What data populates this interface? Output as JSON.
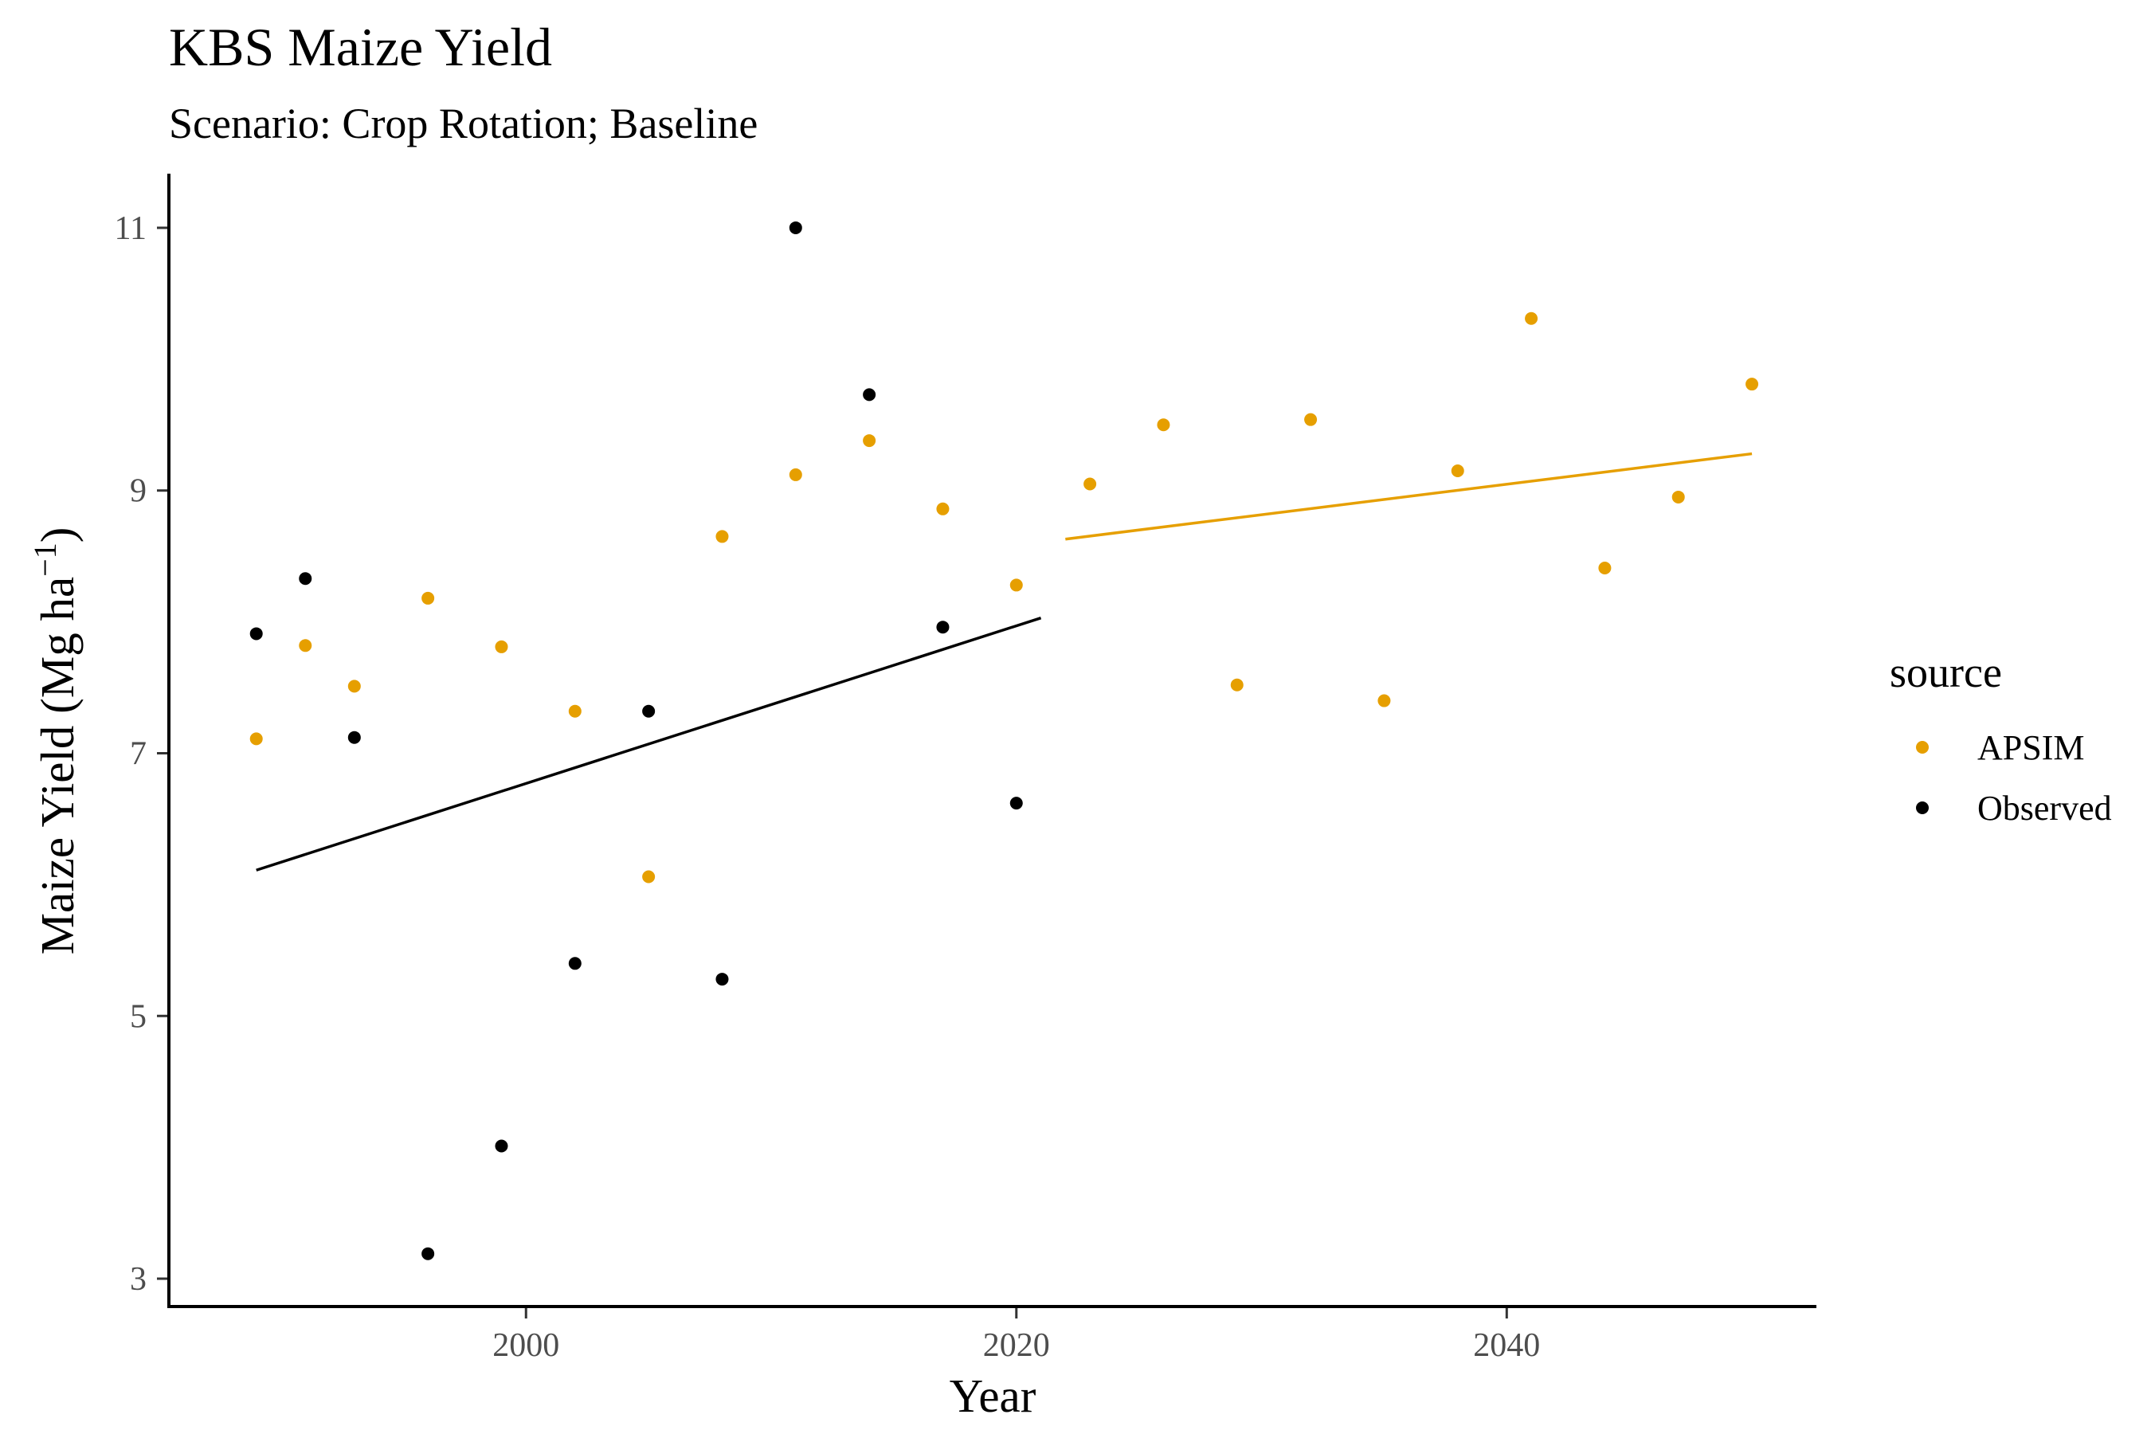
{
  "chart_data": {
    "type": "scatter",
    "title": "KBS Maize Yield",
    "subtitle": "Scenario: Crop Rotation; Baseline",
    "xlabel": "Year",
    "ylabel_main": "Maize Yield (Mg ha",
    "ylabel_sup": "−1",
    "ylabel_close": ")",
    "xlim": [
      1985.5,
      2052.5
    ],
    "ylim": [
      2.8,
      11.4
    ],
    "xticks": [
      2000,
      2020,
      2040
    ],
    "yticks": [
      3,
      5,
      7,
      9,
      11
    ],
    "grid": false,
    "legend": {
      "title": "source",
      "position": "right"
    },
    "series": [
      {
        "name": "APSIM",
        "color": "#E69F00",
        "points": [
          {
            "x": 1989,
            "y": 7.11
          },
          {
            "x": 1991,
            "y": 7.82
          },
          {
            "x": 1993,
            "y": 7.51
          },
          {
            "x": 1996,
            "y": 8.18
          },
          {
            "x": 1999,
            "y": 7.81
          },
          {
            "x": 2002,
            "y": 7.32
          },
          {
            "x": 2005,
            "y": 6.06
          },
          {
            "x": 2008,
            "y": 8.65
          },
          {
            "x": 2011,
            "y": 9.12
          },
          {
            "x": 2014,
            "y": 9.38
          },
          {
            "x": 2017,
            "y": 8.86
          },
          {
            "x": 2020,
            "y": 8.28
          },
          {
            "x": 2023,
            "y": 9.05
          },
          {
            "x": 2026,
            "y": 9.5
          },
          {
            "x": 2029,
            "y": 7.52
          },
          {
            "x": 2032,
            "y": 9.54
          },
          {
            "x": 2035,
            "y": 7.4
          },
          {
            "x": 2038,
            "y": 9.15
          },
          {
            "x": 2041,
            "y": 10.31
          },
          {
            "x": 2044,
            "y": 8.41
          },
          {
            "x": 2047,
            "y": 8.95
          },
          {
            "x": 2050,
            "y": 9.81
          }
        ],
        "trend": {
          "x": [
            2022,
            2050
          ],
          "y": [
            8.63,
            9.28
          ]
        }
      },
      {
        "name": "Observed",
        "color": "#000000",
        "points": [
          {
            "x": 1989,
            "y": 7.91
          },
          {
            "x": 1991,
            "y": 8.33
          },
          {
            "x": 1993,
            "y": 7.12
          },
          {
            "x": 1996,
            "y": 3.19
          },
          {
            "x": 1999,
            "y": 4.01
          },
          {
            "x": 2002,
            "y": 5.4
          },
          {
            "x": 2005,
            "y": 7.32
          },
          {
            "x": 2008,
            "y": 5.28
          },
          {
            "x": 2011,
            "y": 11.0
          },
          {
            "x": 2014,
            "y": 9.73
          },
          {
            "x": 2017,
            "y": 7.96
          },
          {
            "x": 2020,
            "y": 6.62
          }
        ],
        "trend": {
          "x": [
            1989,
            2021
          ],
          "y": [
            6.11,
            8.03
          ]
        }
      }
    ]
  }
}
